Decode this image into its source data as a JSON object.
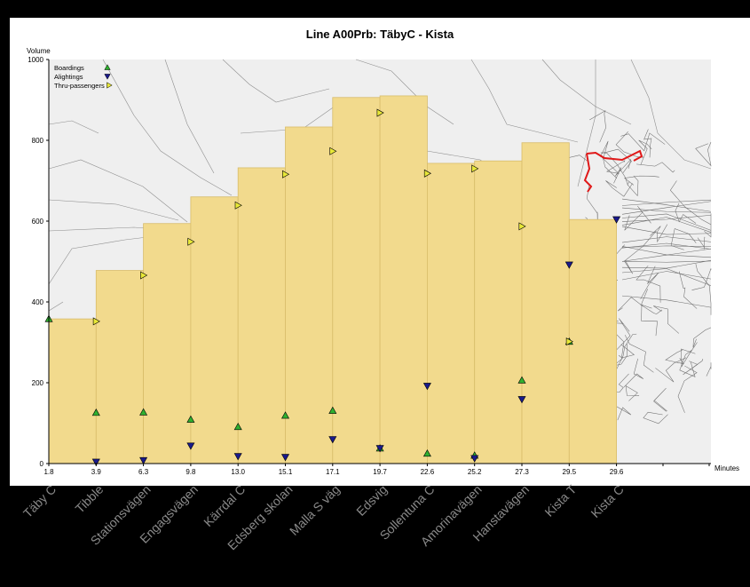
{
  "chart_data": {
    "type": "bar",
    "title": "Line A00Prb: TäbyC - Kista",
    "ylabel": "Volume",
    "xlabel": "Minutes",
    "ylim": [
      0,
      1000
    ],
    "xlim": [
      1.8,
      31.0
    ],
    "y_ticks": [
      0,
      200,
      400,
      600,
      800,
      1000
    ],
    "grid": false,
    "legend_position": "top-left",
    "stops": [
      "Täby C",
      "Tibble",
      "Stationsvägen",
      "Engagsvägen",
      "Kärrdal C",
      "Edsberg skolan",
      "Malla S väg",
      "Edsvig",
      "Sollentuna C",
      "Amorinavägen",
      "Hanstavägen",
      "Kista T",
      "Kista C"
    ],
    "stop_minutes": [
      1.8,
      3.9,
      6.3,
      9.8,
      13.0,
      15.1,
      17.1,
      19.7,
      22.6,
      25.2,
      27.3,
      29.5,
      29.6
    ],
    "stop_minute_labels": [
      "1.8",
      "3.9",
      "6.3",
      "9.8",
      "13.0",
      "15.1",
      "17.1",
      "19.7",
      "22.6",
      "25.2",
      "27.3",
      "29.5",
      "29.6"
    ],
    "load_after_stop": [
      358,
      478,
      594,
      660,
      732,
      833,
      906,
      910,
      743,
      749,
      794,
      604
    ],
    "series": [
      {
        "name": "Boardings",
        "marker": "triangle-up",
        "color": "#2fb02f",
        "values": [
          358,
          126,
          127,
          109,
          91,
          119,
          131,
          38,
          25,
          20,
          206,
          302,
          null
        ]
      },
      {
        "name": "Alightings",
        "marker": "triangle-down",
        "color": "#1a1a8c",
        "values": [
          null,
          4,
          8,
          44,
          18,
          16,
          60,
          38,
          192,
          13,
          159,
          492,
          604
        ]
      },
      {
        "name": "Thru-passengers",
        "marker": "triangle-right",
        "color": "#e8e838",
        "values": [
          null,
          352,
          466,
          549,
          639,
          716,
          773,
          868,
          718,
          730,
          587,
          302,
          null
        ]
      }
    ],
    "colors": {
      "bars": "#f2da8d",
      "bar_edge": "#d8bc6a",
      "map_background": "#efefef",
      "route": "#e01818",
      "axis": "#000000"
    }
  }
}
